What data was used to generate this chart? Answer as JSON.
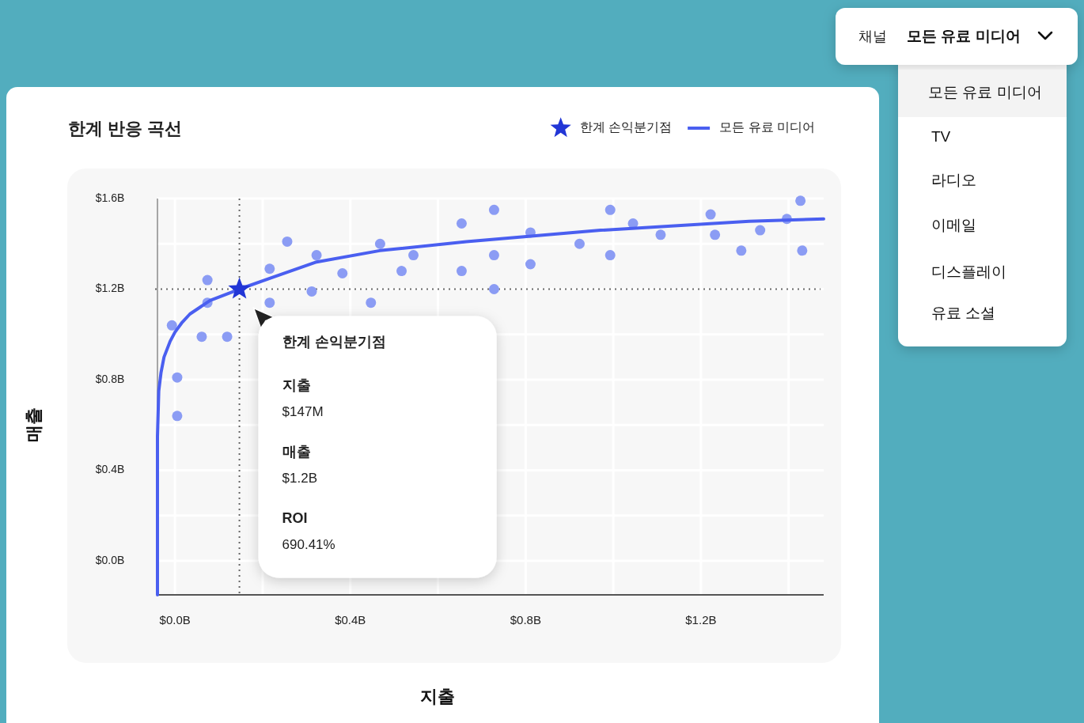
{
  "chart_data": [
    {
      "type": "scatter",
      "title": "한계 반응 곡선",
      "xlabel": "지출",
      "ylabel": "매출",
      "xlim": [
        -0.04,
        1.48
      ],
      "ylim": [
        -0.15,
        1.6
      ],
      "xticks": [
        {
          "value": 0,
          "label": "$0.0B"
        },
        {
          "value": 0.2,
          "label": null
        },
        {
          "value": 0.4,
          "label": "$0.4B"
        },
        {
          "value": 0.6,
          "label": null
        },
        {
          "value": 0.8,
          "label": "$0.8B"
        },
        {
          "value": 1.0,
          "label": null
        },
        {
          "value": 1.2,
          "label": "$1.2B"
        },
        {
          "value": 1.4,
          "label": null
        }
      ],
      "yticks": [
        {
          "value": 0,
          "label": "$0.0B"
        },
        {
          "value": 0.2,
          "label": null
        },
        {
          "value": 0.4,
          "label": "$0.4B"
        },
        {
          "value": 0.6,
          "label": null
        },
        {
          "value": 0.8,
          "label": "$0.8B"
        },
        {
          "value": 1.0,
          "label": null
        },
        {
          "value": 1.2,
          "label": "$1.2B"
        },
        {
          "value": 1.4,
          "label": null
        },
        {
          "value": 1.6,
          "label": "$1.6B"
        }
      ],
      "grid": true,
      "legend": "top right",
      "series": [
        {
          "type": "scatter",
          "color": "#8b9cf4",
          "marker": "circle",
          "x": [
            -0.007,
            0.005,
            0.005,
            0.061,
            0.074,
            0.074,
            0.119,
            0.216,
            0.216,
            0.256,
            0.312,
            0.323,
            0.382,
            0.447,
            0.468,
            0.517,
            0.544,
            0.654,
            0.654,
            0.728,
            0.728,
            0.728,
            0.811,
            0.811,
            0.923,
            0.993,
            0.993,
            1.045,
            1.108,
            1.222,
            1.232,
            1.292,
            1.335,
            1.396,
            1.427,
            1.431
          ],
          "values": [
            1.04,
            0.81,
            0.64,
            0.99,
            1.24,
            1.14,
            0.99,
            1.29,
            1.14,
            1.41,
            1.19,
            1.35,
            1.27,
            1.14,
            1.4,
            1.28,
            1.35,
            1.49,
            1.28,
            1.55,
            1.35,
            1.2,
            1.45,
            1.31,
            1.4,
            1.55,
            1.35,
            1.49,
            1.44,
            1.53,
            1.44,
            1.37,
            1.46,
            1.51,
            1.59,
            1.37
          ]
        },
        {
          "type": "line",
          "name": "모든 유료 미디어",
          "color": "#4a5ff0",
          "marker": "none",
          "line_style": "solid",
          "x": [
            -0.04,
            -0.04,
            -0.037,
            -0.032,
            -0.025,
            -0.011,
            0.0,
            0.015,
            0.034,
            0.08,
            0.147,
            0.22,
            0.323,
            0.467,
            0.665,
            0.971,
            1.31,
            1.48
          ],
          "values": [
            -0.15,
            0.55,
            0.75,
            0.83,
            0.9,
            0.97,
            1.01,
            1.05,
            1.09,
            1.15,
            1.2,
            1.25,
            1.32,
            1.37,
            1.41,
            1.46,
            1.5,
            1.51
          ]
        },
        {
          "type": "scatter",
          "name": "한계 손익분기점",
          "color": "#2236d6",
          "marker": "star",
          "x": [
            0.147
          ],
          "values": [
            1.2
          ]
        }
      ],
      "ref_lines": [
        {
          "axis": "x",
          "value": 0.147,
          "color": "#666666",
          "line_style": "dotted"
        },
        {
          "axis": "y",
          "value": 1.2,
          "color": "#666666",
          "line_style": "dotted"
        }
      ],
      "annotations": [
        "한계 손익분기점",
        "지출",
        "$147M",
        "매출",
        "$1.2B",
        "ROI",
        "690.41%"
      ]
    },
    {
      "type": "other",
      "title": "채널",
      "subtitle": "모든 유료 미디어",
      "annotations": [
        "모든 유료 미디어",
        "TV",
        "라디오",
        "이메일",
        "디스플레이",
        "유료 소셜"
      ]
    }
  ]
}
